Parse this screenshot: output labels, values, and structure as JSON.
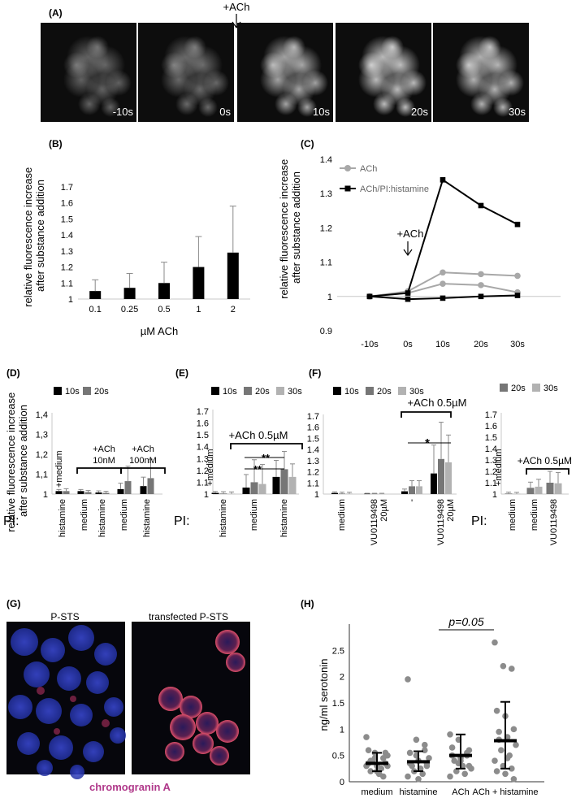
{
  "panel_labels": {
    "A": "(A)",
    "B": "(B)",
    "C": "(C)",
    "D": "(D)",
    "E": "(E)",
    "F": "(F)",
    "G": "(G)",
    "H": "(H)"
  },
  "panelA": {
    "marker": "+ACh",
    "frames": [
      "-10s",
      "0s",
      "10s",
      "20s",
      "30s"
    ],
    "intensity": [
      0.35,
      0.38,
      0.62,
      0.72,
      0.68
    ]
  },
  "ylabel_rel": "relative fluorescence increase after substance addition",
  "ylabel_rel_line1": "relative fluorescence increase",
  "ylabel_rel_line2": "after substance addition",
  "chart_data": [
    {
      "panel": "B",
      "type": "bar",
      "categories": [
        "0.1",
        "0.25",
        "0.5",
        "1",
        "2"
      ],
      "values": [
        1.05,
        1.07,
        1.1,
        1.2,
        1.29
      ],
      "errors": [
        0.07,
        0.09,
        0.13,
        0.19,
        0.29
      ],
      "xlabel": "µM ACh",
      "ylabel": "relative fluorescence increase after substance addition",
      "ylim": [
        1,
        1.7
      ],
      "yticks": [
        "1",
        "1.1",
        "1.2",
        "1.3",
        "1.4",
        "1.5",
        "1.6",
        "1.7"
      ]
    },
    {
      "panel": "C",
      "type": "line",
      "categories": [
        "-10s",
        "0s",
        "10s",
        "20s",
        "30s"
      ],
      "ylim": [
        0.9,
        1.4
      ],
      "yticks": [
        "0.9",
        "1",
        "1.1",
        "1.2",
        "1.3",
        "1.4"
      ],
      "annotation": "+ACh",
      "series": [
        {
          "name": "ACh",
          "values": [
            1.0,
            1.015,
            1.07,
            1.065,
            1.06
          ]
        },
        {
          "name": "",
          "values": [
            1.0,
            1.01,
            1.037,
            1.033,
            1.012
          ]
        },
        {
          "name": "ACh/PI:histamine",
          "values": [
            1.0,
            1.01,
            1.34,
            1.265,
            1.21
          ]
        },
        {
          "name": "",
          "values": [
            1.0,
            0.992,
            0.995,
            1.0,
            1.003
          ]
        }
      ]
    },
    {
      "panel": "D",
      "type": "bar",
      "legend": [
        "10s",
        "20s"
      ],
      "ylim": [
        1,
        1.4
      ],
      "yticks": [
        "1",
        "1,1",
        "1,2",
        "1,3",
        "1,4"
      ],
      "categories": [
        "histamine",
        "medium",
        "histamine",
        "medium",
        "histamine"
      ],
      "series_values": [
        [
          1.015,
          1.015
        ],
        [
          1.015,
          1.01
        ],
        [
          1.008,
          1.006
        ],
        [
          1.025,
          1.065
        ],
        [
          1.04,
          1.08
        ]
      ],
      "errors": [
        [
          0.008,
          0.012
        ],
        [
          0.008,
          0.008
        ],
        [
          0.008,
          0.008
        ],
        [
          0.03,
          0.075
        ],
        [
          0.045,
          0.095
        ]
      ],
      "annotations": [
        "+medium",
        "+ACh",
        "10nM",
        "+ACh",
        "100nM"
      ],
      "pi_label": "PI:"
    },
    {
      "panel": "E",
      "type": "bar",
      "legend": [
        "10s",
        "20s",
        "30s"
      ],
      "ylim": [
        1,
        1.7
      ],
      "yticks": [
        "1",
        "1.1",
        "1.2",
        "1.3",
        "1.4",
        "1.5",
        "1.6",
        "1.7"
      ],
      "categories": [
        "histamine",
        "medium",
        "histamine"
      ],
      "series_values": [
        [
          1.01,
          1.005,
          1.003
        ],
        [
          1.055,
          1.1,
          1.085
        ],
        [
          1.145,
          1.21,
          1.145
        ]
      ],
      "errors": [
        [
          0.012,
          0.015,
          0.015
        ],
        [
          0.11,
          0.19,
          0.165
        ],
        [
          0.14,
          0.15,
          0.11
        ]
      ],
      "annotations": [
        "+medium",
        "+ACh 0.5µM",
        "**",
        "**"
      ],
      "pi_label": "PI:"
    },
    {
      "panel": "F",
      "type": "bar",
      "legend": [
        "10s",
        "20s",
        "30s"
      ],
      "ylim": [
        1,
        1.7
      ],
      "yticks": [
        "1",
        "1.1",
        "1.2",
        "1.3",
        "1.4",
        "1.5",
        "1.6",
        "1.7"
      ],
      "categories": [
        "medium",
        "VU0119498 20µM",
        "-",
        "VU0119498 20µM"
      ],
      "series_values": [
        [
          1.01,
          1.005,
          1.004
        ],
        [
          1.003,
          1.003,
          1.003
        ],
        [
          1.025,
          1.07,
          1.07
        ],
        [
          1.185,
          1.315,
          1.285
        ]
      ],
      "errors": [
        [
          0.01,
          0.012,
          0.012
        ],
        [
          0.004,
          0.004,
          0.004
        ],
        [
          0.02,
          0.05,
          0.05
        ],
        [
          0.255,
          0.33,
          0.245
        ]
      ],
      "annotations": [
        "+ACh 0.5µM",
        "*"
      ]
    },
    {
      "panel": "F2",
      "type": "bar",
      "legend": [
        "20s",
        "30s"
      ],
      "ylim": [
        1,
        1.7
      ],
      "yticks": [
        "1",
        "1.1",
        "1.2",
        "1.3",
        "1.4",
        "1.5",
        "1.6",
        "1.7"
      ],
      "categories": [
        "medium",
        "medium",
        "VU0119498"
      ],
      "series_values": [
        [
          1.005,
          1.003
        ],
        [
          1.055,
          1.065
        ],
        [
          1.1,
          1.095
        ]
      ],
      "errors": [
        [
          0.012,
          0.012
        ],
        [
          0.05,
          0.065
        ],
        [
          0.1,
          0.095
        ]
      ],
      "annotations": [
        "+medium",
        "+ACh 0.5µM"
      ],
      "pi_label": "PI:"
    },
    {
      "panel": "H",
      "type": "scatter",
      "categories": [
        "medium",
        "histamine",
        "ACh",
        "ACh + histamine"
      ],
      "ylabel": "ng/ml serotonin",
      "ylim": [
        0,
        3
      ],
      "yticks": [
        "0",
        "0.5",
        "1",
        "1.5",
        "2",
        "2.5"
      ],
      "annotation": "p=0.05",
      "medians": [
        0.35,
        0.38,
        0.5,
        0.78
      ],
      "whisker_low": [
        0.2,
        0.2,
        0.25,
        0.25
      ],
      "whisker_high": [
        0.55,
        0.58,
        0.9,
        1.52
      ],
      "points": [
        [
          0.85,
          0.55,
          0.45,
          0.6,
          0.3,
          0.35,
          0.2,
          0.15,
          0.5,
          0.4,
          0.25,
          0.3,
          0.45,
          0.1,
          0.35,
          0.2,
          0.55,
          0.4,
          0.15,
          0.3
        ],
        [
          1.95,
          0.8,
          0.7,
          0.55,
          0.4,
          0.35,
          0.3,
          0.25,
          0.45,
          0.2,
          0.15,
          0.1,
          0.5,
          0.6,
          0.35,
          0.05,
          0.3
        ],
        [
          0.9,
          0.8,
          0.55,
          0.5,
          0.45,
          0.6,
          0.4,
          0.3,
          0.25,
          0.2,
          0.15,
          0.1,
          0.35,
          0.5,
          0.65,
          0.4,
          0.3
        ],
        [
          2.65,
          2.2,
          2.15,
          1.35,
          1.25,
          1.0,
          0.95,
          0.85,
          0.7,
          0.6,
          0.5,
          0.4,
          0.3,
          0.25,
          0.2,
          0.15,
          0.05,
          0.8,
          0.45
        ]
      ]
    }
  ],
  "panelG": {
    "left_title": "P-STS",
    "right_title": "transfected P-STS",
    "caption": "chromogranin A",
    "caption_color": "#b0388a"
  },
  "colors": {
    "black": "#000000",
    "dark_gray": "#767676",
    "light_gray": "#b2b2b2",
    "line_gray": "#a8a8a8",
    "dot_gray": "#8c8c8c"
  }
}
